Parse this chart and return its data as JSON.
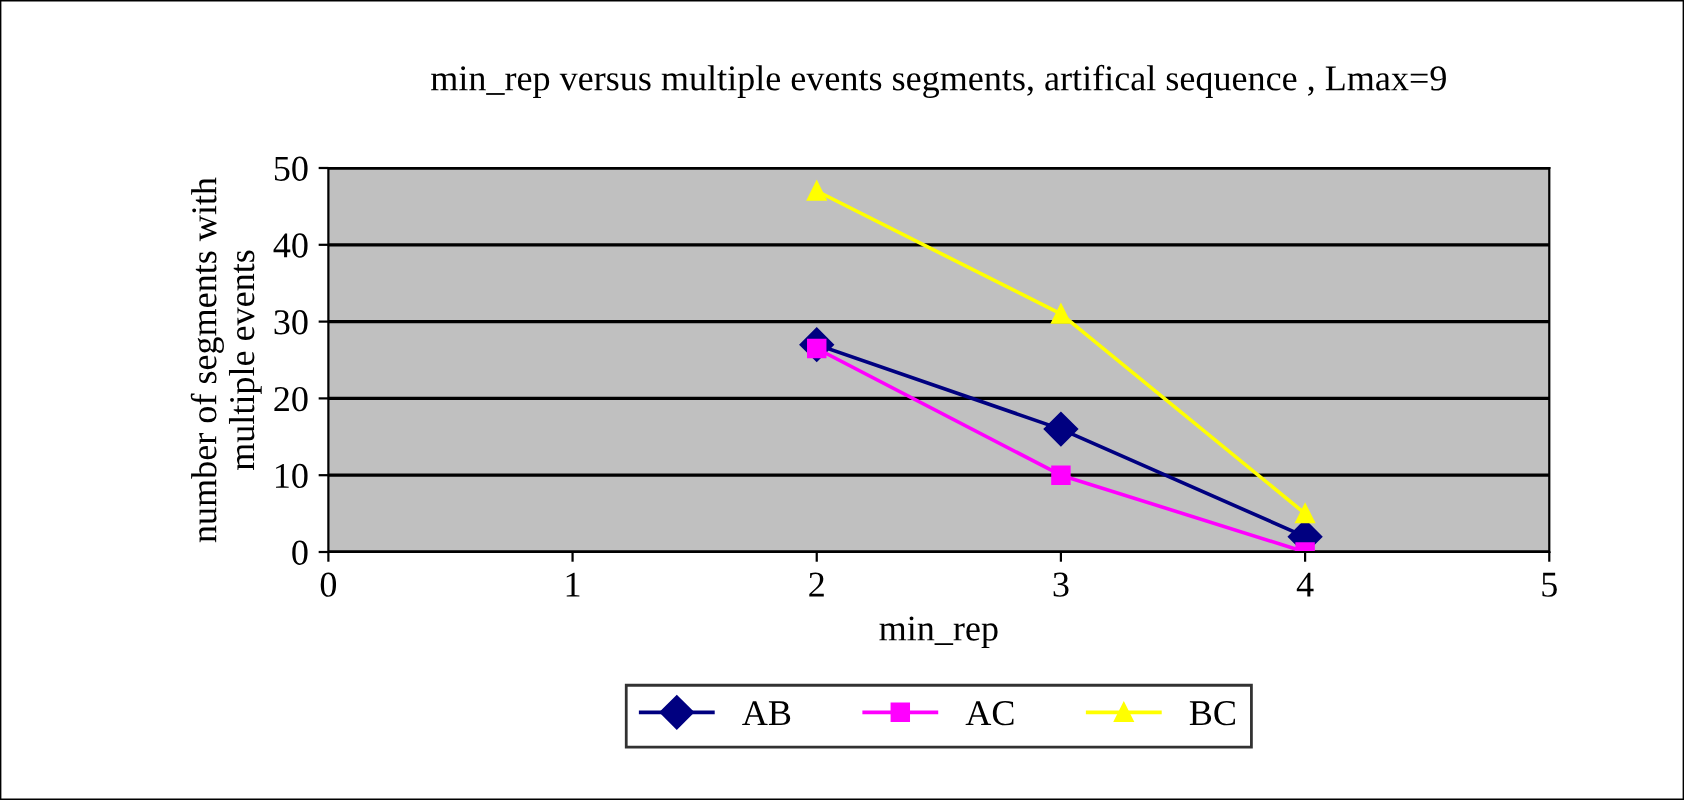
{
  "chart_data": {
    "type": "line",
    "title": "min_rep versus multiple events segments, artifical sequence , Lmax=9",
    "xlabel": "min_rep",
    "ylabel": "number of segments with\nmultiple events",
    "x": [
      2,
      3,
      4
    ],
    "series": [
      {
        "name": "AB",
        "color": "#000080",
        "values": [
          27,
          16,
          2
        ],
        "marker": "diamond"
      },
      {
        "name": "AC",
        "color": "#ff00ff",
        "values": [
          26.5,
          10,
          0
        ],
        "marker": "square"
      },
      {
        "name": "BC",
        "color": "#ffff00",
        "values": [
          47,
          31,
          5
        ],
        "marker": "triangle"
      }
    ],
    "xlim": [
      0,
      5
    ],
    "xticks": [
      0,
      1,
      2,
      3,
      4,
      5
    ],
    "ylim": [
      0,
      50
    ],
    "yticks": [
      0,
      10,
      20,
      30,
      40,
      50
    ],
    "grid": "y",
    "legend": "bottom"
  }
}
